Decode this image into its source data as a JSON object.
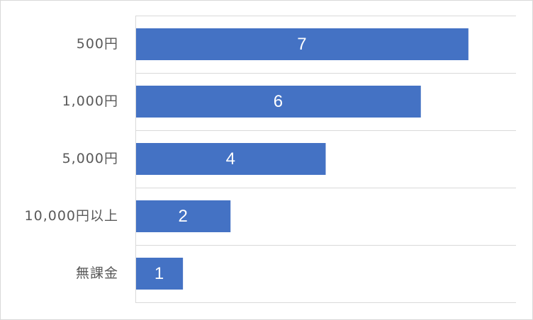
{
  "chart_data": {
    "type": "bar",
    "orientation": "horizontal",
    "categories": [
      "500円",
      "1,000円",
      "5,000円",
      "10,000円以上",
      "無課金"
    ],
    "values": [
      7,
      6,
      4,
      2,
      1
    ],
    "xlim": [
      0,
      8
    ],
    "grid": true,
    "legend": "none",
    "title": "",
    "xlabel": "",
    "ylabel": "",
    "bar_color": "#4472C4",
    "grid_color": "#d9d9d9",
    "label_color": "#595959",
    "data_label_color": "#ffffff"
  }
}
